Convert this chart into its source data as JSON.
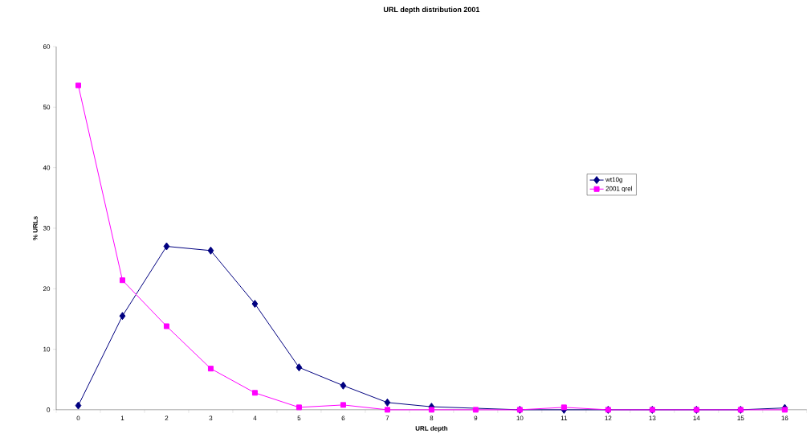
{
  "chart_data": {
    "type": "line",
    "title": "URL depth distribution 2001",
    "xlabel": "URL depth",
    "ylabel": "% URLs",
    "categories": [
      "0",
      "1",
      "2",
      "3",
      "4",
      "5",
      "6",
      "7",
      "8",
      "9",
      "10",
      "11",
      "12",
      "13",
      "14",
      "15",
      "16"
    ],
    "series": [
      {
        "name": "wt10g",
        "color": "#000080",
        "marker": "diamond",
        "values": [
          0.7,
          15.5,
          27,
          26.3,
          17.5,
          7,
          4,
          1.2,
          0.5,
          null,
          0,
          0,
          0,
          0,
          0,
          0,
          0.3
        ]
      },
      {
        "name": "2001 qrel",
        "color": "#ff00ff",
        "marker": "square",
        "values": [
          53.6,
          21.4,
          13.8,
          6.8,
          2.8,
          0.4,
          0.8,
          0,
          0,
          0,
          0,
          0.4,
          0,
          0,
          0,
          0,
          0
        ]
      }
    ],
    "ylim": [
      0,
      60
    ],
    "yticks": [
      0,
      10,
      20,
      30,
      40,
      50,
      60
    ],
    "grid": false,
    "legend": "right",
    "line_style": "solid"
  }
}
